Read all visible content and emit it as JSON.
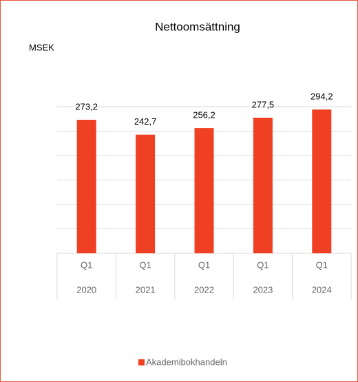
{
  "chart_data": {
    "type": "bar",
    "title": "Nettoomsättning",
    "y_label": "MSEK",
    "categories": [
      "Q1",
      "Q1",
      "Q1",
      "Q1",
      "Q1"
    ],
    "category_groups": [
      "2020",
      "2021",
      "2022",
      "2023",
      "2024"
    ],
    "series": [
      {
        "name": "Akademibokhandeln",
        "color": "#f04023",
        "values": [
          273.2,
          242.7,
          256.2,
          277.5,
          294.2
        ],
        "value_labels": [
          "273,2",
          "242,7",
          "256,2",
          "277,5",
          "294,2"
        ]
      }
    ],
    "ylim": [
      0,
      300
    ],
    "yticks": [
      0,
      50,
      100,
      150,
      200,
      250,
      300
    ],
    "grid": true,
    "legend": "bottom"
  }
}
